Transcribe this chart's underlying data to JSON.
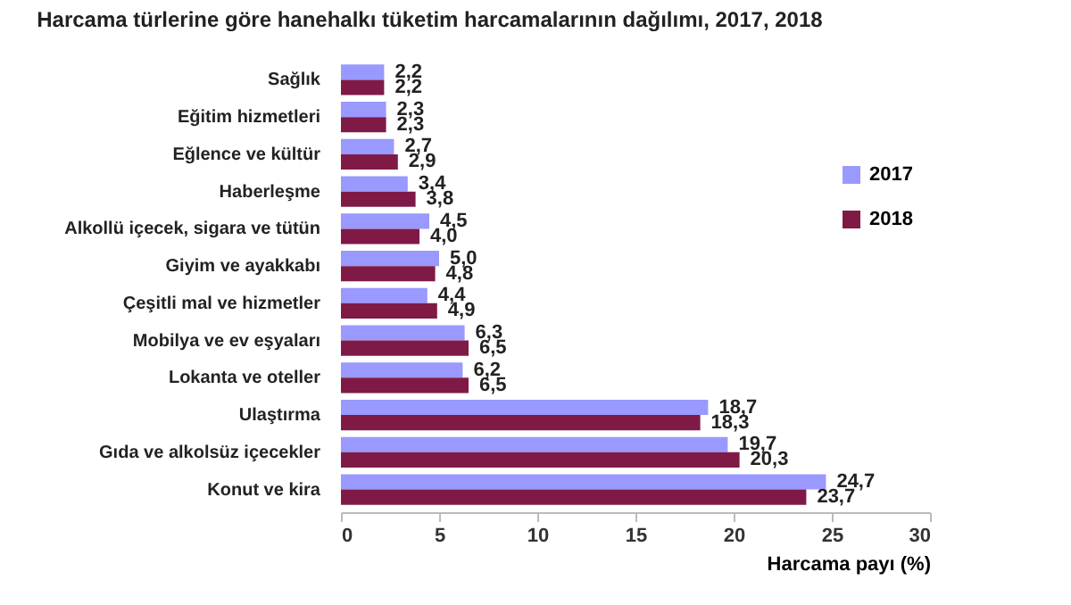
{
  "chart_data": {
    "type": "bar",
    "orientation": "horizontal",
    "title": "Harcama türlerine göre hanehalkı tüketim harcamalarının dağılımı, 2017, 2018",
    "xlabel": "Harcama payı (%)",
    "categories": [
      "Sağlık",
      "Eğitim hizmetleri",
      "Eğlence ve kültür",
      "Haberleşme",
      "Alkollü içecek, sigara ve tütün",
      "Giyim ve ayakkabı",
      "Çeşitli mal ve hizmetler",
      "Mobilya ve ev eşyaları",
      "Lokanta ve oteller",
      "Ulaştırma",
      "Gıda ve alkolsüz içecekler",
      "Konut ve kira"
    ],
    "series": [
      {
        "name": "2017",
        "color": "#9999ff",
        "values": [
          2.2,
          2.3,
          2.7,
          3.4,
          4.5,
          5.0,
          4.4,
          6.3,
          6.2,
          18.7,
          19.7,
          24.7
        ],
        "value_labels": [
          "2,2",
          "2,3",
          "2,7",
          "3,4",
          "4,5",
          "5,0",
          "4,4",
          "6,3",
          "6,2",
          "18,7",
          "19,7",
          "24,7"
        ]
      },
      {
        "name": "2018",
        "color": "#7f1a47",
        "values": [
          2.2,
          2.3,
          2.9,
          3.8,
          4.0,
          4.8,
          4.9,
          6.5,
          6.5,
          18.3,
          20.3,
          23.7
        ],
        "value_labels": [
          "2,2",
          "2,3",
          "2,9",
          "3,8",
          "4,0",
          "4,8",
          "4,9",
          "6,5",
          "6,5",
          "18,3",
          "20,3",
          "23,7"
        ]
      }
    ],
    "xlim": [
      0,
      30
    ],
    "xticks": [
      0,
      5,
      10,
      15,
      20,
      25,
      30
    ],
    "grid": false,
    "legend": "right"
  }
}
